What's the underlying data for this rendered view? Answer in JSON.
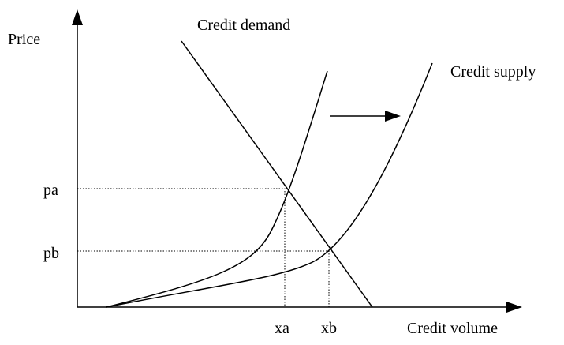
{
  "axes": {
    "y_label": "Price",
    "x_label": "Credit volume"
  },
  "curves": {
    "demand": "Credit demand",
    "supply": "Credit supply"
  },
  "prices": {
    "a": "pa",
    "b": "pb"
  },
  "volumes": {
    "a": "xa",
    "b": "xb"
  }
}
